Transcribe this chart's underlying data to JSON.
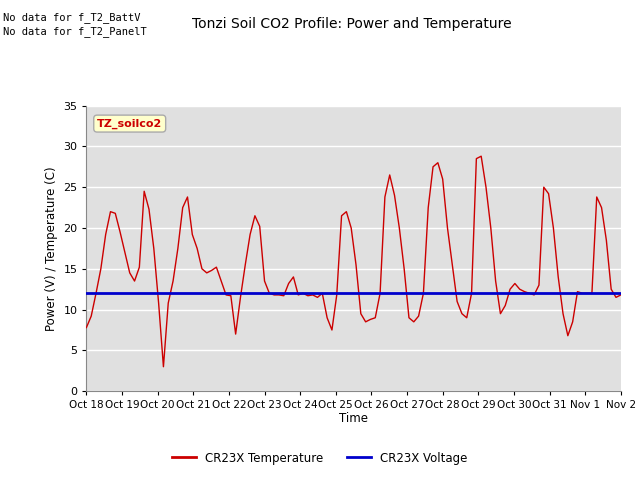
{
  "title": "Tonzi Soil CO2 Profile: Power and Temperature",
  "ylabel": "Power (V) / Temperature (C)",
  "xlabel": "Time",
  "no_data_text1": "No data for f_T2_BattV",
  "no_data_text2": "No data for f_T2_PanelT",
  "legend_box_label": "TZ_soilco2",
  "ylim": [
    0,
    35
  ],
  "yticks": [
    0,
    5,
    10,
    15,
    20,
    25,
    30,
    35
  ],
  "voltage_value": 12.0,
  "temp_color": "#cc0000",
  "voltage_color": "#0000cc",
  "legend_temp": "CR23X Temperature",
  "legend_voltage": "CR23X Voltage",
  "x_tick_labels": [
    "Oct 18",
    "Oct 19",
    "Oct 20",
    "Oct 21",
    "Oct 22",
    "Oct 23",
    "Oct 24",
    "Oct 25",
    "Oct 26",
    "Oct 27",
    "Oct 28",
    "Oct 29",
    "Oct 30",
    "Oct 31",
    "Nov 1",
    "Nov 2"
  ],
  "temp_data": [
    7.8,
    9.2,
    12.0,
    15.0,
    19.2,
    22.0,
    21.8,
    19.5,
    17.0,
    14.5,
    13.5,
    15.2,
    24.5,
    22.3,
    17.5,
    10.8,
    3.0,
    10.8,
    13.5,
    17.5,
    22.5,
    23.8,
    19.2,
    17.5,
    15.0,
    14.5,
    14.8,
    15.2,
    13.5,
    11.8,
    11.7,
    7.0,
    11.5,
    15.5,
    19.2,
    21.5,
    20.2,
    13.5,
    12.0,
    11.8,
    11.8,
    11.7,
    13.2,
    14.0,
    11.8,
    12.0,
    11.7,
    11.8,
    11.5,
    12.0,
    9.0,
    7.5,
    11.8,
    21.5,
    22.0,
    20.0,
    15.5,
    9.5,
    8.5,
    8.8,
    9.0,
    12.0,
    23.8,
    26.5,
    24.0,
    20.0,
    15.0,
    9.0,
    8.5,
    9.2,
    12.0,
    22.5,
    27.5,
    28.0,
    26.0,
    20.0,
    15.5,
    11.0,
    9.5,
    9.0,
    12.0,
    28.5,
    28.8,
    25.0,
    20.0,
    13.5,
    9.5,
    10.5,
    12.5,
    13.2,
    12.5,
    12.2,
    12.0,
    11.8,
    13.0,
    25.0,
    24.2,
    20.0,
    14.0,
    9.5,
    6.8,
    8.5,
    12.2,
    12.0,
    12.0,
    12.0,
    23.8,
    22.5,
    18.5,
    12.5,
    11.5,
    11.8
  ]
}
